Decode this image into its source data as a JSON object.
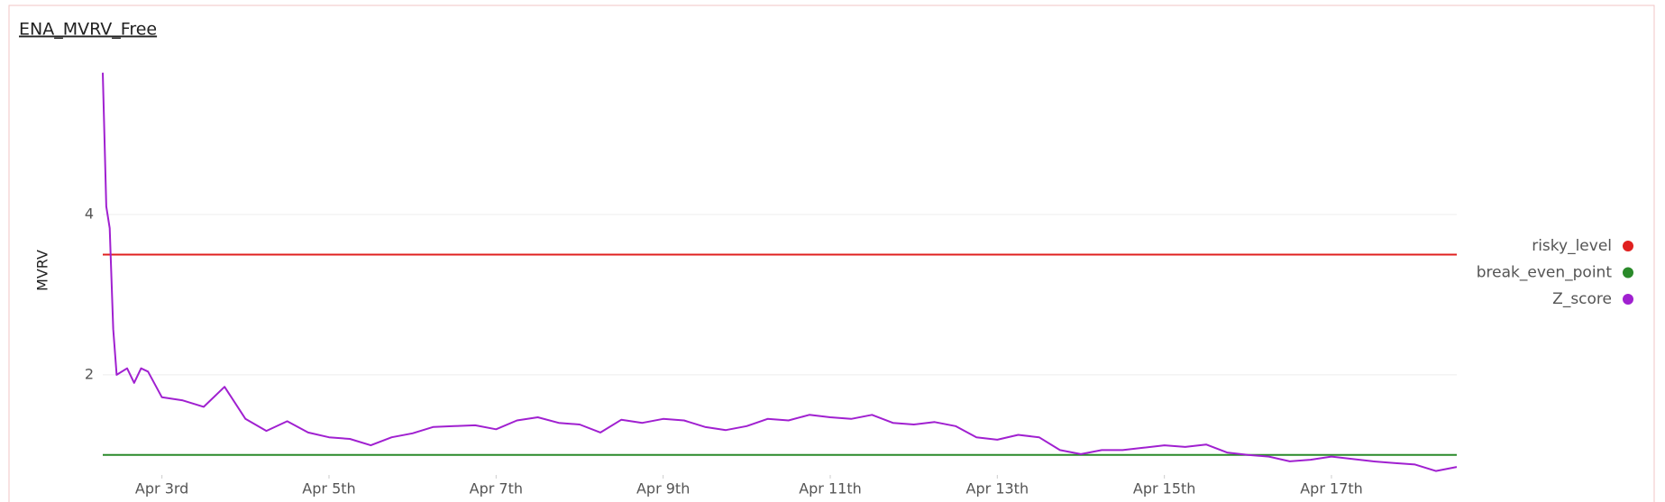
{
  "chart_data": {
    "type": "line",
    "title": "ENA_MVRV_Free",
    "y_label": "MVRV",
    "xlim": [
      "Apr 2 07:00",
      "Apr 18 12:00"
    ],
    "xticks": [
      {
        "value": "Apr 3 00:00",
        "label": "Apr 3rd"
      },
      {
        "value": "Apr 5 00:00",
        "label": "Apr 5th"
      },
      {
        "value": "Apr 7 00:00",
        "label": "Apr 7th"
      },
      {
        "value": "Apr 9 00:00",
        "label": "Apr 9th"
      },
      {
        "value": "Apr 11 00:00",
        "label": "Apr 11th"
      },
      {
        "value": "Apr 13 00:00",
        "label": "Apr 13th"
      },
      {
        "value": "Apr 15 00:00",
        "label": "Apr 15th"
      },
      {
        "value": "Apr 17 00:00",
        "label": "Apr 17th"
      }
    ],
    "ylim": [
      0.75,
      5.8
    ],
    "yticks": [
      2,
      4
    ],
    "grid": true,
    "legend": "right",
    "x": [
      "Apr 2 07:00",
      "Apr 2 08:00",
      "Apr 2 09:00",
      "Apr 2 10:00",
      "Apr 2 11:00",
      "Apr 2 14:00",
      "Apr 2 16:00",
      "Apr 2 18:00",
      "Apr 2 20:00",
      "Apr 3 00:00",
      "Apr 3 06:00",
      "Apr 3 12:00",
      "Apr 3 18:00",
      "Apr 4 00:00",
      "Apr 4 06:00",
      "Apr 4 12:00",
      "Apr 4 18:00",
      "Apr 5 00:00",
      "Apr 5 06:00",
      "Apr 5 12:00",
      "Apr 5 18:00",
      "Apr 6 00:00",
      "Apr 6 06:00",
      "Apr 6 12:00",
      "Apr 6 18:00",
      "Apr 7 00:00",
      "Apr 7 06:00",
      "Apr 7 12:00",
      "Apr 7 18:00",
      "Apr 8 00:00",
      "Apr 8 06:00",
      "Apr 8 12:00",
      "Apr 8 18:00",
      "Apr 9 00:00",
      "Apr 9 06:00",
      "Apr 9 12:00",
      "Apr 9 18:00",
      "Apr 10 00:00",
      "Apr 10 06:00",
      "Apr 10 12:00",
      "Apr 10 18:00",
      "Apr 11 00:00",
      "Apr 11 06:00",
      "Apr 11 12:00",
      "Apr 11 18:00",
      "Apr 12 00:00",
      "Apr 12 06:00",
      "Apr 12 12:00",
      "Apr 12 18:00",
      "Apr 13 00:00",
      "Apr 13 06:00",
      "Apr 13 12:00",
      "Apr 13 18:00",
      "Apr 14 00:00",
      "Apr 14 06:00",
      "Apr 14 12:00",
      "Apr 14 18:00",
      "Apr 15 00:00",
      "Apr 15 06:00",
      "Apr 15 12:00",
      "Apr 15 18:00",
      "Apr 16 00:00",
      "Apr 16 06:00",
      "Apr 16 12:00",
      "Apr 16 18:00",
      "Apr 17 00:00",
      "Apr 17 06:00",
      "Apr 17 12:00",
      "Apr 17 18:00",
      "Apr 18 00:00",
      "Apr 18 06:00",
      "Apr 18 12:00"
    ],
    "series": [
      {
        "name": "risky_level",
        "color": "#e0201f",
        "value": 3.5
      },
      {
        "name": "break_even_point",
        "color": "#2a8a2a",
        "value": 1
      },
      {
        "name": "Z_score",
        "color": "#a020d0",
        "values": [
          5.77,
          4.1,
          3.83,
          2.57,
          2.0,
          2.08,
          1.9,
          2.08,
          2.04,
          1.72,
          1.68,
          1.6,
          1.85,
          1.45,
          1.3,
          1.42,
          1.28,
          1.22,
          1.2,
          1.12,
          1.22,
          1.27,
          1.35,
          1.36,
          1.37,
          1.32,
          1.43,
          1.47,
          1.4,
          1.38,
          1.28,
          1.44,
          1.4,
          1.45,
          1.43,
          1.35,
          1.31,
          1.36,
          1.45,
          1.43,
          1.5,
          1.47,
          1.45,
          1.5,
          1.4,
          1.38,
          1.41,
          1.36,
          1.22,
          1.19,
          1.25,
          1.22,
          1.06,
          1.01,
          1.06,
          1.06,
          1.09,
          1.12,
          1.1,
          1.13,
          1.03,
          1.0,
          0.98,
          0.92,
          0.94,
          0.98,
          0.95,
          0.92,
          0.9,
          0.88,
          0.8,
          0.85
        ]
      }
    ]
  }
}
